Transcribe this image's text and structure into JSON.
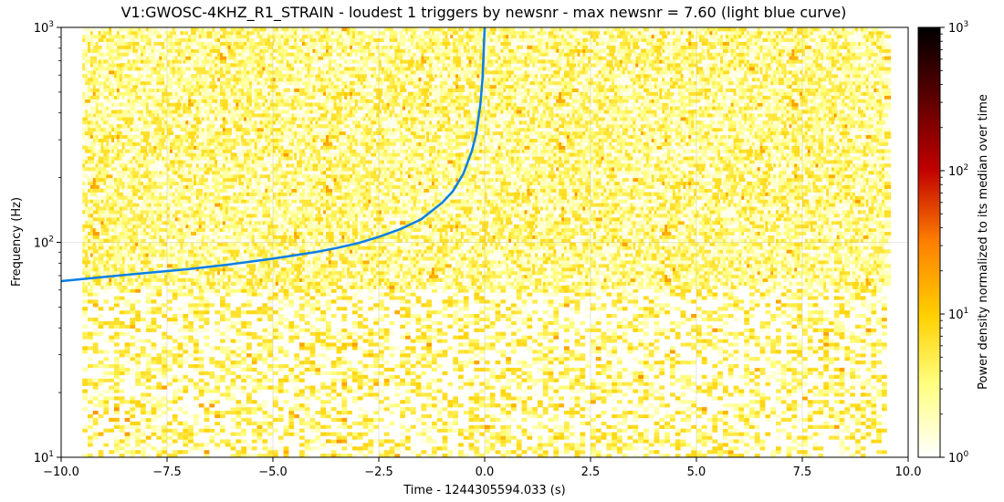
{
  "chart_data": {
    "type": "heatmap",
    "title": "V1:GWOSC-4KHZ_R1_STRAIN - loudest 1 triggers by newsnr - max newsnr = 7.60 (light blue curve)",
    "xlabel": "Time - 1244305594.033 (s)",
    "ylabel": "Frequency (Hz)",
    "xlim": [
      -10.0,
      10.0
    ],
    "ylim": [
      10,
      1000
    ],
    "yscale": "log",
    "grid": true,
    "x_ticks": [
      -10.0,
      -7.5,
      -5.0,
      -2.5,
      0.0,
      2.5,
      5.0,
      7.5,
      10.0
    ],
    "x_tick_labels": [
      "−10.0",
      "−7.5",
      "−5.0",
      "−2.5",
      "0.0",
      "2.5",
      "5.0",
      "7.5",
      "10.0"
    ],
    "y_ticks": [
      10,
      100,
      1000
    ],
    "y_tick_labels": [
      {
        "base": "10",
        "exp": "1"
      },
      {
        "base": "10",
        "exp": "2"
      },
      {
        "base": "10",
        "exp": "3"
      }
    ],
    "colorbar": {
      "label": "Power density normalized to its median over time",
      "scale": "log",
      "range": [
        1,
        1000
      ],
      "colormap": "afmhot_r",
      "ticks": [
        1,
        10,
        100,
        1000
      ],
      "tick_labels": [
        {
          "base": "10",
          "exp": "0"
        },
        {
          "base": "10",
          "exp": "1"
        },
        {
          "base": "10",
          "exp": "2"
        },
        {
          "base": "10",
          "exp": "3"
        }
      ]
    },
    "series": [
      {
        "type": "line",
        "color": "#0a7fe6",
        "x": [
          -10.0,
          -9.0,
          -8.0,
          -7.0,
          -6.0,
          -5.0,
          -4.0,
          -3.5,
          -3.0,
          -2.5,
          -2.0,
          -1.5,
          -1.0,
          -0.75,
          -0.5,
          -0.3,
          -0.2,
          -0.1,
          -0.05,
          -0.02,
          0.0
        ],
        "y": [
          66,
          69,
          72,
          75,
          79,
          84,
          90,
          94,
          99,
          106,
          115,
          128,
          153,
          173,
          209,
          267,
          320,
          440,
          580,
          800,
          1000
        ]
      }
    ],
    "spectrogram_description_levels": {
      "low_band_hz": [
        10,
        60
      ],
      "high_band_hz": [
        60,
        1000
      ],
      "typical_level": 3,
      "max_level": 30
    }
  }
}
